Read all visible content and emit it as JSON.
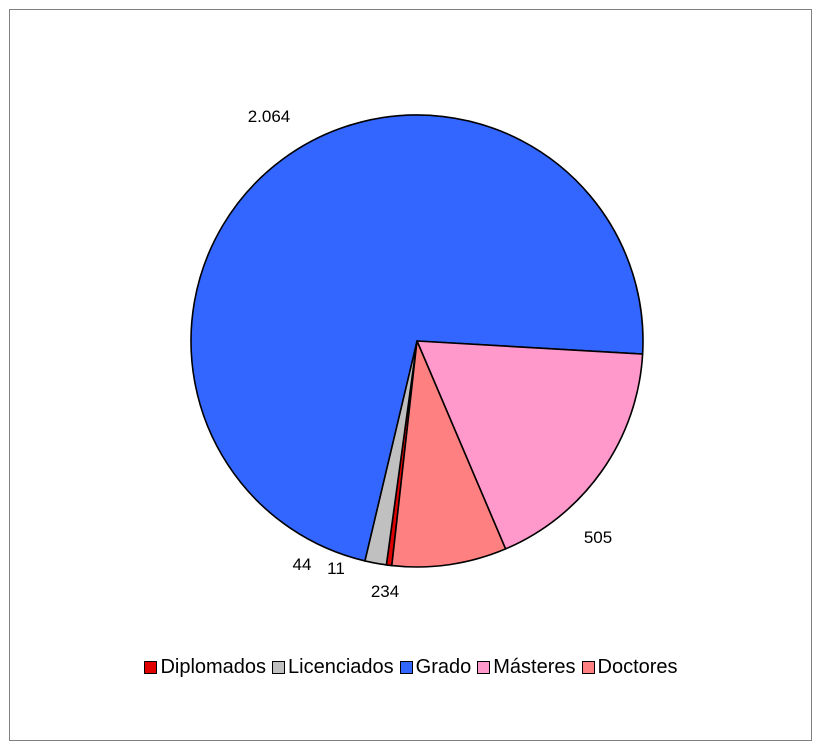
{
  "chart_data": {
    "type": "pie",
    "title": "",
    "categories": [
      "Diplomados",
      "Licenciados",
      "Grado",
      "Másteres",
      "Doctores"
    ],
    "values": [
      11,
      44,
      2064,
      505,
      234
    ],
    "value_labels": [
      "11",
      "44",
      "2.064",
      "505",
      "234"
    ],
    "colors": [
      "#e00000",
      "#c0c0c0",
      "#3366ff",
      "#ff99cc",
      "#ff8080"
    ],
    "legend": "bottom"
  }
}
